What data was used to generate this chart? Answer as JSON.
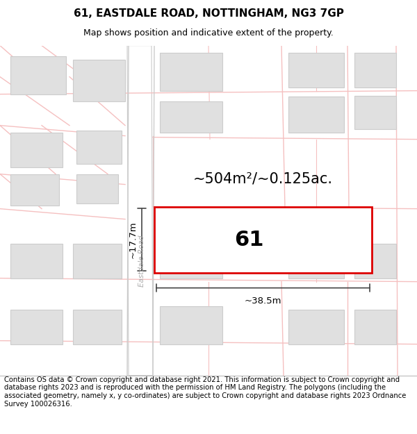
{
  "title": "61, EASTDALE ROAD, NOTTINGHAM, NG3 7GP",
  "subtitle": "Map shows position and indicative extent of the property.",
  "footer": "Contains OS data © Crown copyright and database right 2021. This information is subject to Crown copyright and database rights 2023 and is reproduced with the permission of HM Land Registry. The polygons (including the associated geometry, namely x, y co-ordinates) are subject to Crown copyright and database rights 2023 Ordnance Survey 100026316.",
  "map_bg": "#f8f8f8",
  "title_fontsize": 11,
  "subtitle_fontsize": 9,
  "footer_fontsize": 7.2,
  "area_text": "~504m²/~0.125ac.",
  "label_text": "61",
  "width_text": "~38.5m",
  "height_text": "~17.7m",
  "road_label": "Eastdale Road",
  "road_color": "#f5c0c0",
  "building_color": "#e0e0e0",
  "building_outline": "#cccccc",
  "highlight_color": "#dd0000",
  "dim_line_color": "#444444",
  "road_line_color": "#cccccc"
}
